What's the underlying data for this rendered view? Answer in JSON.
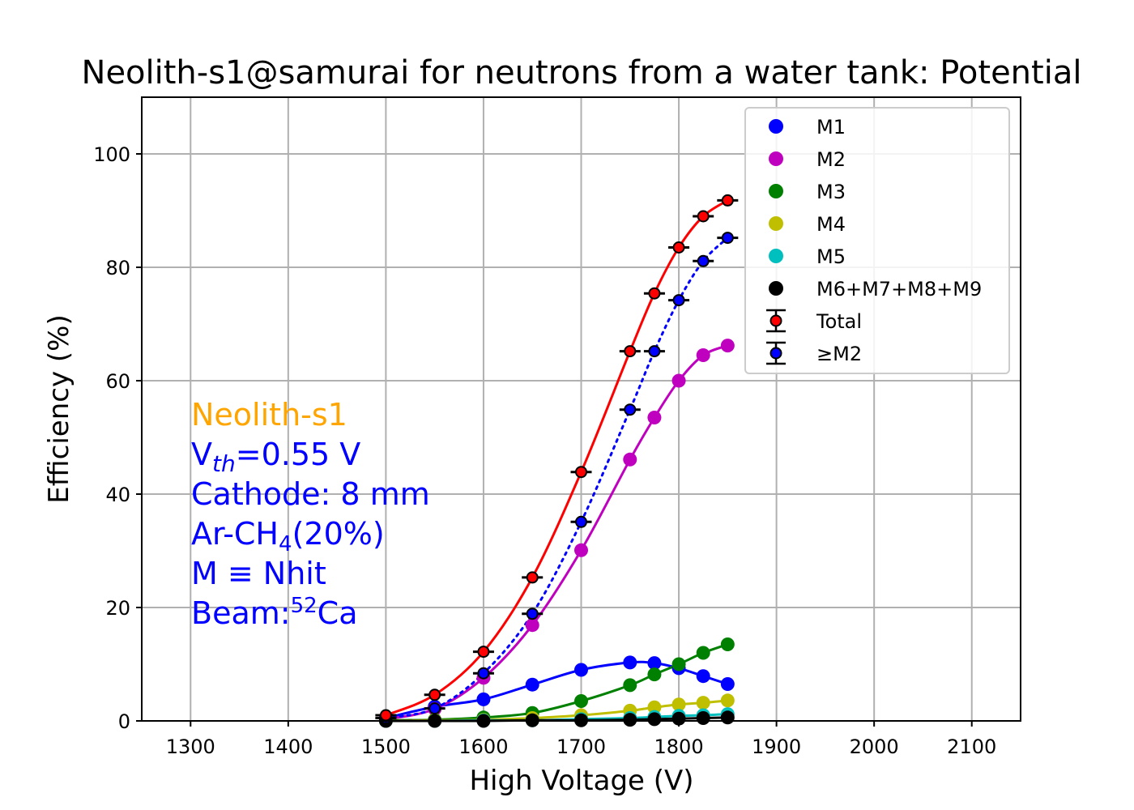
{
  "chart_data": {
    "type": "line",
    "title": "Neolith-s1@samurai for neutrons from a water tank: Potential",
    "xlabel": "High Voltage (V)",
    "ylabel": "Efficiency (%)",
    "xlim": [
      1250,
      2150
    ],
    "ylim": [
      0,
      110
    ],
    "x_ticks": [
      1300,
      1400,
      1500,
      1600,
      1700,
      1800,
      1900,
      2000,
      2100
    ],
    "y_ticks": [
      0,
      20,
      40,
      60,
      80,
      100
    ],
    "grid": true,
    "legend_position": "top-right",
    "x": [
      1500,
      1550,
      1600,
      1650,
      1700,
      1750,
      1775,
      1800,
      1825,
      1850
    ],
    "series": [
      {
        "name": "M1",
        "color": "#0000ff",
        "marker": "circle",
        "line": "solid",
        "values": [
          0.5,
          2.5,
          3.8,
          6.4,
          9.0,
          10.3,
          10.2,
          9.3,
          7.9,
          6.5
        ]
      },
      {
        "name": "M2",
        "color": "#bf00bf",
        "marker": "circle",
        "line": "solid",
        "values": [
          0.3,
          2.1,
          7.6,
          16.9,
          30.1,
          46.1,
          53.5,
          60.0,
          64.5,
          66.2
        ]
      },
      {
        "name": "M3",
        "color": "#008000",
        "marker": "circle",
        "line": "solid",
        "values": [
          0.1,
          0.2,
          0.6,
          1.4,
          3.5,
          6.3,
          8.2,
          10.0,
          12.0,
          13.5
        ]
      },
      {
        "name": "M4",
        "color": "#bfbf00",
        "marker": "circle",
        "line": "solid",
        "values": [
          0.0,
          0.1,
          0.2,
          0.5,
          1.0,
          1.8,
          2.4,
          2.9,
          3.2,
          3.6
        ]
      },
      {
        "name": "M5",
        "color": "#00bfbf",
        "marker": "circle",
        "line": "solid",
        "values": [
          0.0,
          0.0,
          0.1,
          0.1,
          0.3,
          0.5,
          0.7,
          0.9,
          1.0,
          1.2
        ]
      },
      {
        "name": "M6+M7+M8+M9",
        "color": "#000000",
        "marker": "circle",
        "line": "solid",
        "values": [
          0.0,
          0.0,
          0.0,
          0.1,
          0.1,
          0.2,
          0.3,
          0.4,
          0.5,
          0.6
        ]
      },
      {
        "name": "Total",
        "color": "#ff0000",
        "marker": "circle-errorbar",
        "line": "solid",
        "values": [
          1.0,
          4.6,
          12.2,
          25.3,
          43.9,
          65.2,
          75.4,
          83.5,
          89.0,
          91.8
        ]
      },
      {
        "name": "≥M2",
        "color": "#0000ff",
        "marker": "circle-errorbar",
        "line": "dotted",
        "values": [
          0.5,
          2.2,
          8.4,
          18.9,
          35.1,
          54.9,
          65.2,
          74.2,
          81.1,
          85.2
        ]
      }
    ]
  },
  "annotation": {
    "color_detector": "#ffa500",
    "color_text": "#0000ff",
    "detector": "Neolith-s1",
    "vth_prefix": "V",
    "vth_sub": "th",
    "vth_value": "=0.55 V",
    "cathode": "Cathode: 8 mm",
    "gas_prefix": "Ar-CH",
    "gas_sub": "4",
    "gas_suffix": "(20%)",
    "m_def": "M ≡ Nhit",
    "beam_prefix": "Beam:",
    "beam_sup": "52",
    "beam_suffix": "Ca"
  }
}
